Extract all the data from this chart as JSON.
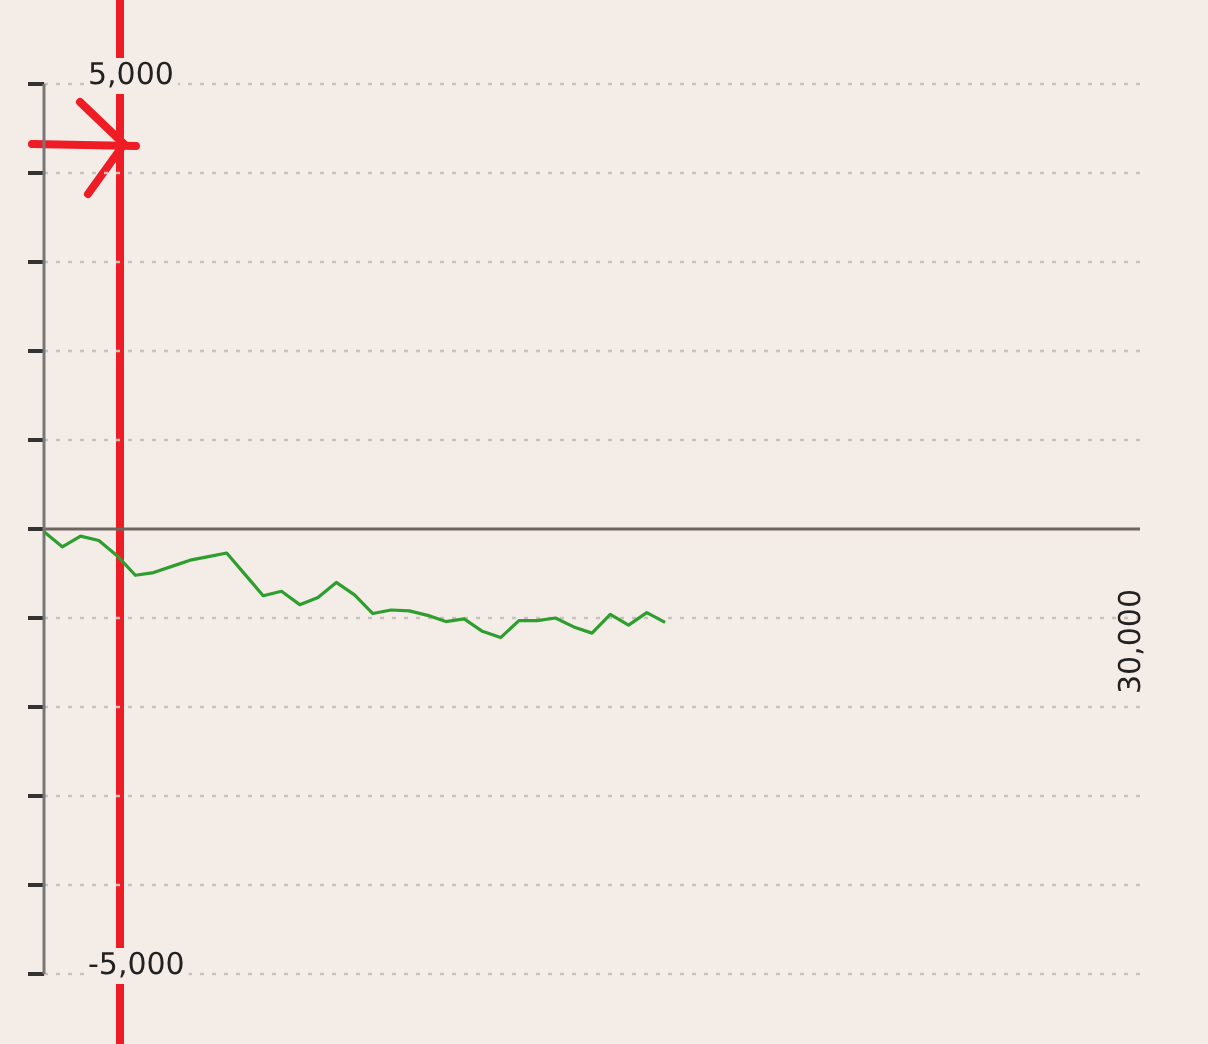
{
  "chart_data": {
    "type": "line",
    "categories": [
      null,
      null,
      null,
      null,
      null,
      null,
      null,
      null,
      null,
      null,
      null,
      null,
      null,
      null,
      null,
      null,
      null,
      null,
      null,
      null,
      null,
      null,
      null,
      null,
      null,
      null,
      null,
      null,
      null,
      null,
      null,
      null,
      null,
      null,
      null,
      null,
      null,
      null,
      null,
      null,
      null,
      null,
      null,
      null,
      null,
      null,
      null,
      null,
      null,
      null,
      null,
      null,
      null,
      null,
      null,
      null,
      null,
      null,
      null,
      null,
      null
    ],
    "ylim": [
      -5000,
      5000
    ],
    "yticks": [
      {
        "value": -5000,
        "label": "-5,000"
      },
      {
        "value": -4000,
        "label": null
      },
      {
        "value": -3000,
        "label": null
      },
      {
        "value": -2000,
        "label": null
      },
      {
        "value": -1000,
        "label": null
      },
      {
        "value": 0,
        "label": null
      },
      {
        "value": 1000,
        "label": null
      },
      {
        "value": 2000,
        "label": null
      },
      {
        "value": 3000,
        "label": null
      },
      {
        "value": 4000,
        "label": null
      },
      {
        "value": 5000,
        "label": "5,000"
      }
    ],
    "grid": "y",
    "marker": "none",
    "line_style": "solid",
    "annotations": [
      "30,000"
    ],
    "series": [
      {
        "color": "#2e9e2e",
        "values": [
          -30,
          -200,
          -80,
          -130,
          -300,
          -520,
          -490,
          -420,
          -350,
          -310,
          -270,
          -510,
          -750,
          -700,
          -850,
          -770,
          -600,
          -740,
          -950,
          -910,
          -920,
          -970,
          -1040,
          -1010,
          -1150,
          -1220,
          -1030,
          -1030,
          -1000,
          -1100,
          -1170,
          -960,
          -1080,
          -940,
          -1050,
          null,
          null,
          null,
          null,
          null,
          null,
          null,
          null,
          null,
          null,
          null,
          null,
          null,
          null,
          null,
          null,
          null,
          null,
          null,
          null,
          null,
          null,
          null,
          null,
          null,
          null
        ]
      }
    ]
  }
}
